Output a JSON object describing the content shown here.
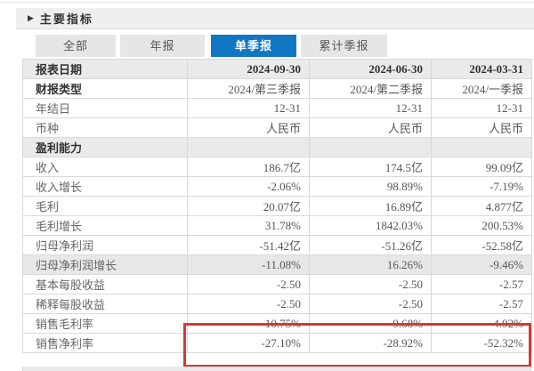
{
  "page": {
    "title": "主要指标"
  },
  "icons": {
    "collapse_arrow": "▶"
  },
  "colors": {
    "accent_blue": "#1277c2",
    "highlight_red": "#d43a2f",
    "row_gray": "#eaeaea",
    "titlebar_gray": "#efefef"
  },
  "tabs": [
    {
      "label": "全部",
      "selected": false
    },
    {
      "label": "年报",
      "selected": false
    },
    {
      "label": "单季报",
      "selected": true
    },
    {
      "label": "累计季报",
      "selected": false
    }
  ],
  "table": {
    "header": {
      "label": "报表日期",
      "values": [
        "2024-09-30",
        "2024-06-30",
        "2024-03-31"
      ]
    },
    "rows": [
      {
        "label": "报表日期",
        "values": [
          "2024-09-30",
          "2024-06-30",
          "2024-03-31"
        ],
        "type": "header"
      },
      {
        "label": "财报类型",
        "values": [
          "2024/第三季报",
          "2024/第二季报",
          "2024/一季报"
        ],
        "type": "meta-bold"
      },
      {
        "label": "年结日",
        "values": [
          "12-31",
          "12-31",
          "12-31"
        ],
        "type": "meta"
      },
      {
        "label": "币种",
        "values": [
          "人民币",
          "人民币",
          "人民币"
        ],
        "type": "meta"
      },
      {
        "label": "盈利能力",
        "values": [
          "",
          "",
          ""
        ],
        "type": "section"
      },
      {
        "label": "收入",
        "values": [
          "186.7亿",
          "174.5亿",
          "99.09亿"
        ],
        "type": "metric"
      },
      {
        "label": "收入增长",
        "values": [
          "-2.06%",
          "98.89%",
          "-7.19%"
        ],
        "type": "metric"
      },
      {
        "label": "毛利",
        "values": [
          "20.07亿",
          "16.89亿",
          "4.877亿"
        ],
        "type": "metric"
      },
      {
        "label": "毛利增长",
        "values": [
          "31.78%",
          "1842.03%",
          "200.53%"
        ],
        "type": "metric"
      },
      {
        "label": "归母净利润",
        "values": [
          "-51.42亿",
          "-51.26亿",
          "-52.58亿"
        ],
        "type": "metric"
      },
      {
        "label": "归母净利润增长",
        "values": [
          "-11.08%",
          "16.26%",
          "-9.46%"
        ],
        "type": "metric-hover"
      },
      {
        "label": "基本每股收益",
        "values": [
          "-2.50",
          "-2.50",
          "-2.57"
        ],
        "type": "metric"
      },
      {
        "label": "稀释每股收益",
        "values": [
          "-2.50",
          "-2.50",
          "-2.57"
        ],
        "type": "metric"
      },
      {
        "label": "销售毛利率",
        "values": [
          "10.75%",
          "9.68%",
          "4.92%"
        ],
        "type": "metric",
        "highlighted": true
      },
      {
        "label": "销售净利率",
        "values": [
          "-27.10%",
          "-28.92%",
          "-52.32%"
        ],
        "type": "metric",
        "highlighted": true
      }
    ]
  }
}
